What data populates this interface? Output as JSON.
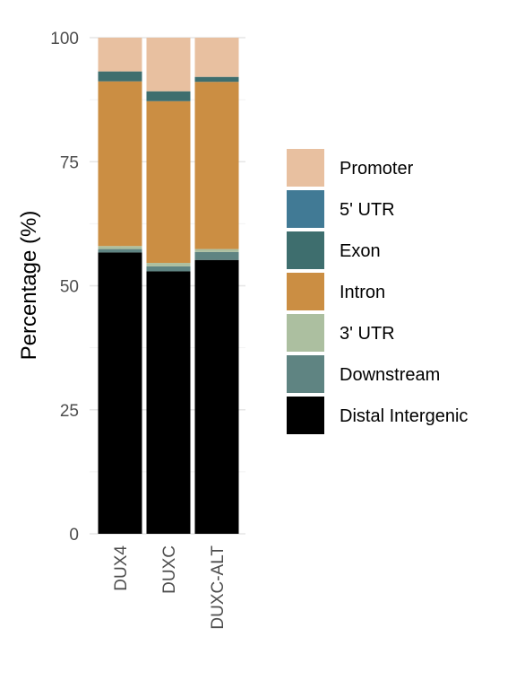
{
  "chart_data": {
    "type": "bar",
    "stacked": true,
    "title": "",
    "xlabel": "",
    "ylabel": "Percentage (%)",
    "ylim": [
      0,
      100
    ],
    "y_ticks": [
      0,
      25,
      50,
      75,
      100
    ],
    "grid": true,
    "legend_position": "right",
    "categories": [
      "DUX4",
      "DUXC",
      "DUXC-ALT"
    ],
    "series": [
      {
        "name": "Distal Intergenic",
        "color": "#000000",
        "values": [
          56.7,
          52.9,
          55.2
        ]
      },
      {
        "name": "Downstream",
        "color": "#5f8482",
        "values": [
          0.7,
          1.0,
          1.6
        ]
      },
      {
        "name": "3' UTR",
        "color": "#acbfa0",
        "values": [
          0.6,
          0.7,
          0.6
        ]
      },
      {
        "name": "Intron",
        "color": "#cb8e43",
        "values": [
          33.2,
          32.6,
          33.7
        ]
      },
      {
        "name": "Exon",
        "color": "#3e6e6e",
        "values": [
          2.0,
          2.0,
          1.0
        ]
      },
      {
        "name": "5' UTR",
        "color": "#417a95",
        "values": [
          0.0,
          0.0,
          0.0
        ]
      },
      {
        "name": "Promoter",
        "color": "#e8c0a0",
        "values": [
          6.8,
          10.8,
          7.9
        ]
      }
    ],
    "legend_order": [
      "Promoter",
      "5' UTR",
      "Exon",
      "Intron",
      "3' UTR",
      "Downstream",
      "Distal Intergenic"
    ]
  }
}
